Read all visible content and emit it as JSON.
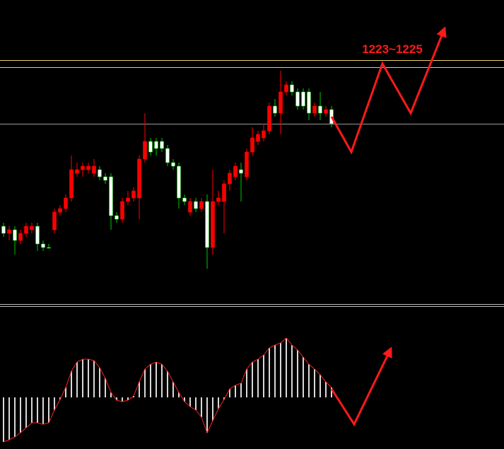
{
  "chart_data": [
    {
      "type": "candlestick",
      "xlim": [
        -0.625,
        88.5
      ],
      "ylim": [
        1156,
        1242
      ],
      "open": [
        1178,
        1176,
        1177,
        1174,
        1176,
        1177,
        1178,
        1173,
        1172,
        1177,
        1182,
        1183,
        1186,
        1193,
        1194,
        1194,
        1193,
        1194,
        1192,
        1192,
        1181,
        1180,
        1185,
        1186,
        1186,
        1197,
        1202,
        1202,
        1202,
        1200,
        1196,
        1195,
        1186,
        1182,
        1185,
        1183,
        1185,
        1172,
        1185,
        1185,
        1190,
        1192,
        1194,
        1192,
        1199,
        1202,
        1203,
        1205,
        1212,
        1210,
        1216,
        1218,
        1216,
        1216,
        1216,
        1210,
        1212,
        1210,
        1211
      ],
      "high": [
        1179,
        1178,
        1178,
        1177,
        1179,
        1179,
        1179,
        1174,
        1173,
        1183,
        1184,
        1187,
        1198,
        1196,
        1196,
        1196,
        1197,
        1195,
        1193,
        1193,
        1182,
        1186,
        1188,
        1189,
        1198,
        1210,
        1203,
        1203,
        1203,
        1201,
        1197,
        1196,
        1187,
        1186,
        1186,
        1186,
        1187,
        1194,
        1188,
        1191,
        1194,
        1196,
        1196,
        1200,
        1206,
        1205,
        1207,
        1213,
        1214,
        1222,
        1219,
        1219,
        1217,
        1217,
        1217,
        1213,
        1216,
        1212,
        1212
      ],
      "low": [
        1175,
        1174,
        1170,
        1173,
        1175,
        1176,
        1171,
        1171,
        1172,
        1176,
        1181,
        1182,
        1185,
        1192,
        1192,
        1193,
        1192,
        1191,
        1190,
        1177,
        1179,
        1179,
        1184,
        1185,
        1180,
        1196,
        1198,
        1198,
        1199,
        1195,
        1194,
        1183,
        1184,
        1181,
        1182,
        1182,
        1166,
        1170,
        1184,
        1176,
        1188,
        1191,
        1185,
        1191,
        1198,
        1201,
        1202,
        1204,
        1209,
        1204,
        1215,
        1215,
        1211,
        1211,
        1208,
        1209,
        1208,
        1209,
        1206
      ],
      "close": [
        1176,
        1177,
        1174,
        1176,
        1178,
        1178,
        1173,
        1172,
        1172,
        1182,
        1183,
        1186,
        1194,
        1194,
        1195,
        1195,
        1195,
        1192,
        1191,
        1181,
        1180,
        1185,
        1186,
        1188,
        1197,
        1202,
        1199,
        1200,
        1200,
        1196,
        1195,
        1186,
        1185,
        1185,
        1183,
        1185,
        1172,
        1185,
        1186,
        1190,
        1193,
        1195,
        1193,
        1199,
        1203,
        1204,
        1205,
        1212,
        1210,
        1216,
        1218,
        1216,
        1212,
        1212,
        1210,
        1212,
        1210,
        1211,
        1207
      ],
      "up_color": "#ff0000",
      "down_color": "#ffffff",
      "down_wick_color": "#00c800",
      "levels": [
        {
          "value": 1225,
          "color": "#e8d060"
        },
        {
          "value": 1223,
          "color": "#e8d060"
        },
        {
          "value": 1207,
          "color": "#9a9a9a"
        }
      ],
      "projection": {
        "x": [
          58,
          61.5,
          67,
          72,
          78
        ],
        "y": [
          1209,
          1199,
          1224,
          1210,
          1234
        ],
        "color": "#ff1a1a"
      },
      "annotation": "1223~1225"
    },
    {
      "type": "histogram",
      "xlim": [
        -0.625,
        88.5
      ],
      "ylim": [
        -7.3,
        12.7
      ],
      "values": [
        -6.3,
        -6.0,
        -5.6,
        -5.0,
        -4.3,
        -3.6,
        -3.6,
        -3.8,
        -3.6,
        -1.8,
        -0.3,
        1.4,
        3.7,
        5.0,
        5.4,
        5.4,
        5.2,
        4.2,
        2.7,
        0.7,
        -0.4,
        -0.6,
        -0.4,
        0.2,
        2.2,
        4.0,
        4.7,
        5.0,
        4.7,
        3.7,
        2.2,
        0.7,
        -0.6,
        -1.3,
        -1.8,
        -2.8,
        -5.0,
        -3.3,
        -1.6,
        -0.3,
        1.2,
        1.7,
        2.0,
        4.0,
        5.0,
        5.4,
        6.0,
        7.0,
        7.4,
        7.7,
        8.4,
        7.4,
        6.7,
        5.7,
        4.7,
        4.0,
        3.2,
        2.2,
        1.4
      ],
      "color": "#d8d8d8",
      "line_color": "#ff2020",
      "projection": {
        "x": [
          58,
          62,
          68.5
        ],
        "y": [
          1.2,
          -3.8,
          6.9
        ],
        "color": "#ff1a1a"
      }
    }
  ]
}
